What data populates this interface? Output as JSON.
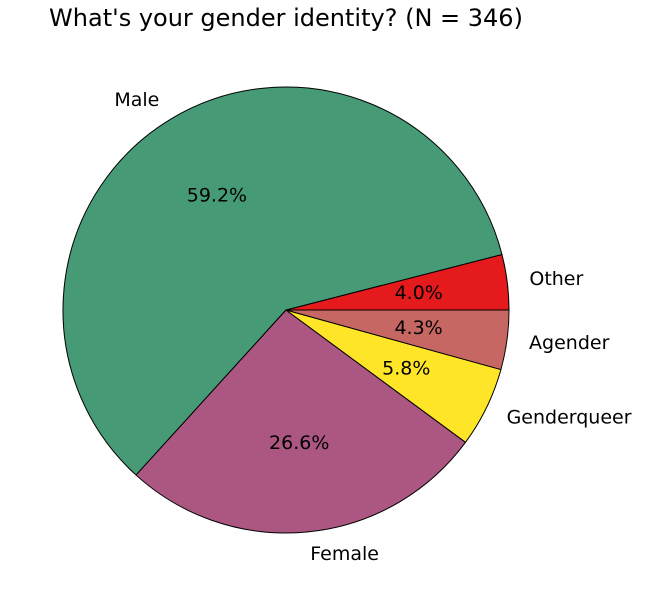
{
  "chart_data": {
    "type": "pie",
    "title": "What's your gender identity? (N = 346)",
    "slices": [
      {
        "label": "Other",
        "percent": 4.0,
        "pct_text": "4.0%",
        "color": "#e41a1c"
      },
      {
        "label": "Male",
        "percent": 59.2,
        "pct_text": "59.2%",
        "color": "#469b76"
      },
      {
        "label": "Female",
        "percent": 26.6,
        "pct_text": "26.6%",
        "color": "#ac5782"
      },
      {
        "label": "Genderqueer",
        "percent": 5.8,
        "pct_text": "5.8%",
        "color": "#ffe528"
      },
      {
        "label": "Agender",
        "percent": 4.3,
        "pct_text": "4.3%",
        "color": "#c66764"
      }
    ],
    "start_angle_deg": 0,
    "direction": "counterclockwise"
  }
}
